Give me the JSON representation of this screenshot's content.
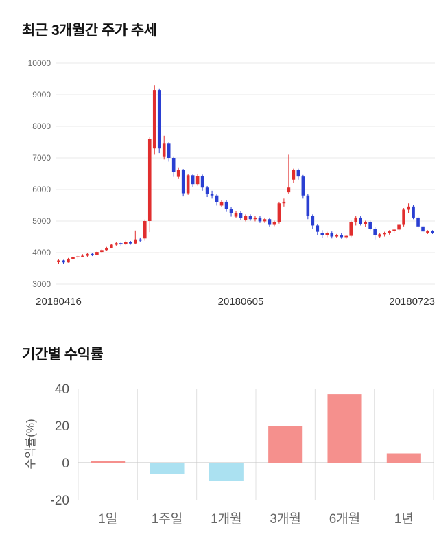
{
  "sections": {
    "price_title": "최근 3개월간 주가 추세",
    "returns_title": "기간별 수익률"
  },
  "chart_data": [
    {
      "type": "candlestick",
      "title": "최근 3개월간 주가 추세",
      "ylim": [
        3000,
        10000
      ],
      "y_ticks": [
        3000,
        4000,
        5000,
        6000,
        7000,
        8000,
        9000,
        10000
      ],
      "x_tick_labels": [
        "20180416",
        "20180605",
        "20180723"
      ],
      "x_tick_indices": [
        0,
        38,
        78
      ],
      "up_color": "#e12e2e",
      "down_color": "#2a3fd2",
      "grid_color": "#e8e8e8",
      "grid": true,
      "legend": false,
      "candles_ohlc": [
        [
          3700,
          3780,
          3650,
          3750
        ],
        [
          3750,
          3770,
          3640,
          3690
        ],
        [
          3690,
          3830,
          3680,
          3800
        ],
        [
          3800,
          3880,
          3770,
          3850
        ],
        [
          3850,
          3910,
          3780,
          3880
        ],
        [
          3880,
          3950,
          3850,
          3900
        ],
        [
          3900,
          3990,
          3870,
          3960
        ],
        [
          3960,
          3990,
          3890,
          3920
        ],
        [
          3920,
          4050,
          3910,
          4020
        ],
        [
          4020,
          4110,
          4000,
          4080
        ],
        [
          4080,
          4180,
          4060,
          4150
        ],
        [
          4150,
          4280,
          4130,
          4250
        ],
        [
          4250,
          4330,
          4220,
          4300
        ],
        [
          4300,
          4340,
          4220,
          4260
        ],
        [
          4260,
          4380,
          4240,
          4340
        ],
        [
          4340,
          4370,
          4250,
          4290
        ],
        [
          4290,
          4700,
          4260,
          4420
        ],
        [
          4420,
          4480,
          4330,
          4380
        ],
        [
          4450,
          5050,
          4380,
          5000
        ],
        [
          5000,
          7650,
          4650,
          7600
        ],
        [
          7300,
          9300,
          7100,
          9150
        ],
        [
          9150,
          9200,
          7150,
          7300
        ],
        [
          7050,
          7700,
          6950,
          7450
        ],
        [
          7450,
          7500,
          6880,
          7000
        ],
        [
          7000,
          7050,
          6400,
          6550
        ],
        [
          6400,
          6680,
          6330,
          6620
        ],
        [
          6620,
          6650,
          5780,
          5880
        ],
        [
          5880,
          6500,
          5830,
          6450
        ],
        [
          6450,
          6500,
          6070,
          6170
        ],
        [
          6170,
          6500,
          6120,
          6420
        ],
        [
          6420,
          6470,
          5960,
          6060
        ],
        [
          6060,
          6110,
          5760,
          5860
        ],
        [
          5860,
          5960,
          5710,
          5810
        ],
        [
          5810,
          5860,
          5490,
          5590
        ],
        [
          5490,
          5660,
          5440,
          5610
        ],
        [
          5610,
          5660,
          5290,
          5390
        ],
        [
          5390,
          5440,
          5140,
          5240
        ],
        [
          5140,
          5310,
          5090,
          5260
        ],
        [
          5260,
          5310,
          5040,
          5090
        ],
        [
          5040,
          5210,
          4990,
          5160
        ],
        [
          5160,
          5210,
          5010,
          5060
        ],
        [
          5060,
          5160,
          4990,
          5110
        ],
        [
          5110,
          5160,
          4940,
          4990
        ],
        [
          4990,
          5110,
          4940,
          5060
        ],
        [
          5060,
          5110,
          4830,
          4880
        ],
        [
          4880,
          5010,
          4840,
          4970
        ],
        [
          4970,
          5610,
          4920,
          5560
        ],
        [
          5560,
          5710,
          5460,
          5610
        ],
        [
          5910,
          7100,
          5860,
          6060
        ],
        [
          6310,
          6660,
          6210,
          6610
        ],
        [
          6610,
          6660,
          6310,
          6410
        ],
        [
          6410,
          6460,
          5710,
          5810
        ],
        [
          5810,
          5860,
          5060,
          5160
        ],
        [
          5160,
          5210,
          4760,
          4860
        ],
        [
          4860,
          4910,
          4560,
          4660
        ],
        [
          4610,
          4710,
          4460,
          4560
        ],
        [
          4560,
          4660,
          4490,
          4630
        ],
        [
          4630,
          4670,
          4450,
          4510
        ],
        [
          4510,
          4590,
          4460,
          4560
        ],
        [
          4560,
          4610,
          4440,
          4490
        ],
        [
          4490,
          4560,
          4440,
          4530
        ],
        [
          4530,
          5010,
          4490,
          4960
        ],
        [
          4960,
          5160,
          4860,
          5110
        ],
        [
          5110,
          5160,
          4860,
          4910
        ],
        [
          4910,
          5010,
          4810,
          4960
        ],
        [
          4960,
          5010,
          4710,
          4760
        ],
        [
          4760,
          4810,
          4420,
          4560
        ],
        [
          4510,
          4610,
          4460,
          4580
        ],
        [
          4580,
          4660,
          4510,
          4630
        ],
        [
          4630,
          4710,
          4570,
          4680
        ],
        [
          4680,
          4760,
          4610,
          4730
        ],
        [
          4730,
          4910,
          4690,
          4880
        ],
        [
          4880,
          5410,
          4830,
          5360
        ],
        [
          5360,
          5560,
          5260,
          5460
        ],
        [
          5460,
          5510,
          5060,
          5110
        ],
        [
          5110,
          5160,
          4760,
          4830
        ],
        [
          4830,
          4860,
          4610,
          4670
        ],
        [
          4630,
          4710,
          4590,
          4690
        ],
        [
          4690,
          4710,
          4590,
          4630
        ]
      ]
    },
    {
      "type": "bar",
      "title": "기간별 수익률",
      "categories": [
        "1일",
        "1주일",
        "1개월",
        "3개월",
        "6개월",
        "1년"
      ],
      "values": [
        1,
        -6,
        -10,
        20,
        37,
        5
      ],
      "xlabel": "",
      "ylabel": "수익률(%)",
      "ylim": [
        -20,
        40
      ],
      "y_ticks": [
        -20,
        0,
        20,
        40
      ],
      "positive_color": "#f5908d",
      "negative_color": "#abe1f1",
      "grid_color": "#e0e0e0",
      "zero_line_color": "#c2c2c2",
      "grid": true,
      "legend": false
    }
  ]
}
